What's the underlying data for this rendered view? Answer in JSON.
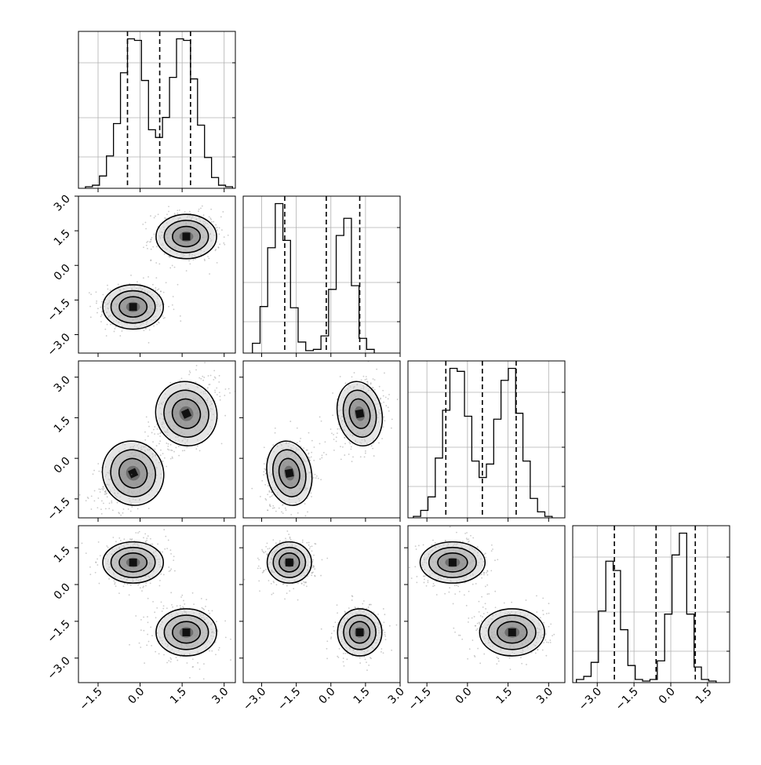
{
  "chart_data": {
    "type": "corner",
    "dimensions": 4,
    "axes": [
      {
        "id": "p0",
        "range": [
          -2.2,
          3.4
        ],
        "ticks": [
          -1.5,
          0.0,
          1.5,
          3.0
        ],
        "tick_labels": [
          "−1.5",
          "0.0",
          "1.5",
          "3.0"
        ]
      },
      {
        "id": "p1",
        "range": [
          -3.8,
          3.0
        ],
        "ticks": [
          -3.0,
          -1.5,
          0.0,
          1.5,
          3.0
        ],
        "tick_labels": [
          "−3.0",
          "−1.5",
          "0.0",
          "1.5",
          "3.0"
        ]
      },
      {
        "id": "p2",
        "range": [
          -2.2,
          3.6
        ],
        "ticks": [
          -1.5,
          0.0,
          1.5,
          3.0
        ],
        "tick_labels": [
          "−1.5",
          "0.0",
          "1.5",
          "3.0"
        ]
      },
      {
        "id": "p3",
        "range": [
          -4.0,
          2.4
        ],
        "ticks": [
          -3.0,
          -1.5,
          0.0,
          1.5
        ],
        "tick_labels": [
          "−3.0",
          "−1.5",
          "0.0",
          "1.5"
        ]
      }
    ],
    "modes": [
      {
        "weight": 0.5,
        "mean": [
          -0.25,
          -1.8,
          -0.55,
          0.9
        ],
        "sd": [
          0.45,
          0.4,
          0.5,
          0.35
        ]
      },
      {
        "weight": 0.5,
        "mean": [
          1.65,
          1.25,
          1.65,
          -1.95
        ],
        "sd": [
          0.45,
          0.4,
          0.5,
          0.4
        ]
      }
    ],
    "quantiles": [
      [
        -0.45,
        0.7,
        1.8
      ],
      [
        -2.0,
        -0.2,
        1.25
      ],
      [
        -0.8,
        0.55,
        1.8
      ],
      [
        -2.3,
        -0.6,
        1.0
      ]
    ],
    "histograms": [
      {
        "bin_start": -1.95,
        "bin_width": 0.25,
        "counts": [
          1,
          2,
          8,
          21,
          42,
          75,
          97,
          96,
          70,
          38,
          33,
          46,
          72,
          97,
          96,
          71,
          41,
          20,
          7,
          2,
          1
        ]
      },
      {
        "bin_start": -3.4,
        "bin_width": 0.33,
        "counts": [
          8,
          38,
          86,
          122,
          92,
          37,
          9,
          2,
          3,
          14,
          52,
          96,
          110,
          55,
          12,
          3
        ]
      },
      {
        "bin_start": -2.0,
        "bin_width": 0.27,
        "counts": [
          1,
          5,
          14,
          40,
          72,
          100,
          98,
          68,
          38,
          27,
          36,
          66,
          92,
          100,
          70,
          38,
          13,
          4,
          1
        ]
      },
      {
        "bin_start": -3.85,
        "bin_width": 0.3,
        "counts": [
          2,
          4,
          13,
          46,
          78,
          72,
          34,
          11,
          2,
          1,
          2,
          14,
          44,
          82,
          96,
          44,
          10,
          2,
          1
        ]
      }
    ],
    "grid": true,
    "contour_levels": 3
  }
}
